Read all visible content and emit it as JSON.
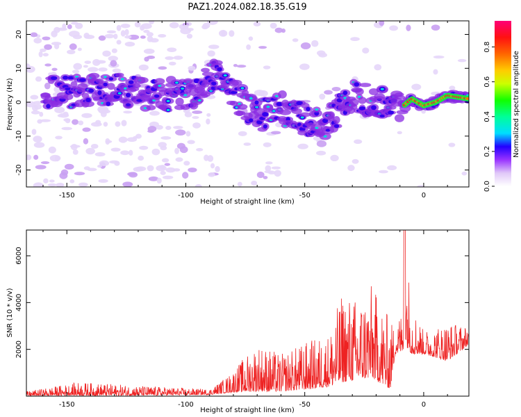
{
  "title": "PAZ1.2024.082.18.35.G19",
  "chart_data": [
    {
      "type": "heatmap",
      "xlabel": "Height of straight line (km)",
      "ylabel": "Frequency (Hz)",
      "xlim": [
        -167,
        19
      ],
      "ylim": [
        -25,
        24
      ],
      "xticks": [
        -150,
        -100,
        -50,
        0
      ],
      "yticks": [
        -20,
        -10,
        0,
        10,
        20
      ],
      "colorbar": {
        "label": "Normalized spectral amplitude",
        "range": [
          0.0,
          0.95
        ],
        "ticks": [
          0.0,
          0.2,
          0.4,
          0.6,
          0.8
        ]
      },
      "ridge": [
        {
          "x": -150,
          "y": 3
        },
        {
          "x": -130,
          "y": 4
        },
        {
          "x": -110,
          "y": 2
        },
        {
          "x": -95,
          "y": 3
        },
        {
          "x": -88,
          "y": 8
        },
        {
          "x": -80,
          "y": 3
        },
        {
          "x": -70,
          "y": -4
        },
        {
          "x": -60,
          "y": -2
        },
        {
          "x": -50,
          "y": -5
        },
        {
          "x": -40,
          "y": -6
        },
        {
          "x": -30,
          "y": 2
        },
        {
          "x": -20,
          "y": 0
        },
        {
          "x": -10,
          "y": -2
        },
        {
          "x": -5,
          "y": 1
        },
        {
          "x": 0,
          "y": -1
        },
        {
          "x": 5,
          "y": 0
        },
        {
          "x": 10,
          "y": 2
        },
        {
          "x": 19,
          "y": 1
        }
      ]
    },
    {
      "type": "line",
      "xlabel": "Height of straight line (km)",
      "ylabel": "SNR (10 * v/v)",
      "xlim": [
        -167,
        19
      ],
      "ylim": [
        0,
        7100
      ],
      "xticks": [
        -150,
        -100,
        -50,
        0
      ],
      "yticks": [
        2000,
        4000,
        6000
      ],
      "color": "#ee2222",
      "envelope": [
        {
          "x": -167,
          "lo": 20,
          "hi": 200
        },
        {
          "x": -145,
          "lo": 30,
          "hi": 600
        },
        {
          "x": -120,
          "lo": 30,
          "hi": 450
        },
        {
          "x": -90,
          "lo": 60,
          "hi": 300
        },
        {
          "x": -82,
          "lo": 150,
          "hi": 900
        },
        {
          "x": -70,
          "lo": 200,
          "hi": 2300
        },
        {
          "x": -60,
          "lo": 200,
          "hi": 1800
        },
        {
          "x": -48,
          "lo": 300,
          "hi": 2400
        },
        {
          "x": -40,
          "lo": 400,
          "hi": 2700
        },
        {
          "x": -34,
          "lo": 600,
          "hi": 4500
        },
        {
          "x": -28,
          "lo": 700,
          "hi": 4200
        },
        {
          "x": -22,
          "lo": 800,
          "hi": 4800
        },
        {
          "x": -14,
          "lo": 300,
          "hi": 3300
        },
        {
          "x": -12,
          "lo": 1800,
          "hi": 3000
        },
        {
          "x": -9,
          "lo": 1900,
          "hi": 3800
        },
        {
          "x": -8,
          "lo": 2200,
          "hi": 7100
        },
        {
          "x": -5,
          "lo": 1800,
          "hi": 4000
        },
        {
          "x": 0,
          "lo": 1800,
          "hi": 2800
        },
        {
          "x": 10,
          "lo": 1500,
          "hi": 3200
        },
        {
          "x": 19,
          "lo": 2200,
          "hi": 3000
        }
      ]
    }
  ]
}
